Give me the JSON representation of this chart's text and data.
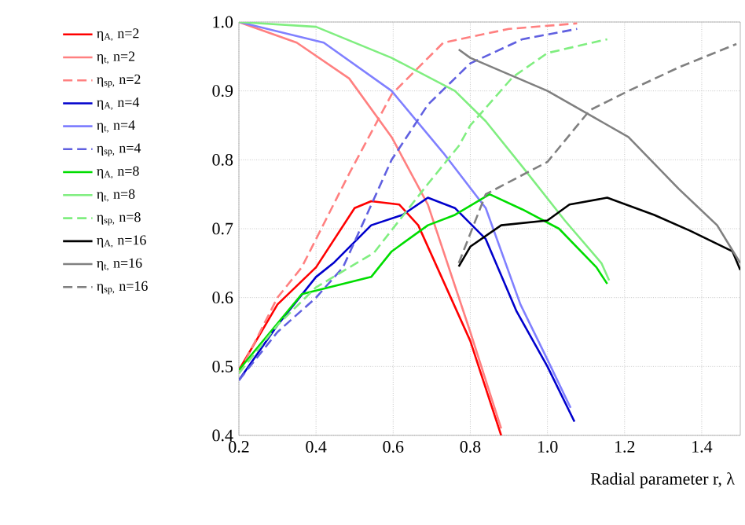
{
  "chart_data": {
    "type": "line",
    "xlabel": "Radial parameter r, λ",
    "xlim": [
      0.2,
      1.5
    ],
    "ylim": [
      0.4,
      1.0
    ],
    "xticks": [
      0.2,
      0.4,
      0.6,
      0.8,
      {
        "value": 1.0,
        "label": "1.0"
      },
      1.2,
      1.4
    ],
    "yticks": [
      0.4,
      0.5,
      0.6,
      0.7,
      0.8,
      0.9,
      {
        "value": 1.0,
        "label": "1.0"
      }
    ],
    "grid": true,
    "legend": "left",
    "series": [
      {
        "name": "η$_{A,}$  n=2",
        "color": "#ff0000",
        "line_style": "solid",
        "x": [
          0.2,
          0.3,
          0.4,
          0.5,
          0.543,
          0.616,
          0.665,
          0.8,
          0.88
        ],
        "values": [
          0.495,
          0.59,
          0.644,
          0.73,
          0.74,
          0.735,
          0.705,
          0.537,
          0.4
        ]
      },
      {
        "name": "η$_{t,}$  n=2",
        "color": "#ff8080",
        "line_style": "solid",
        "x": [
          0.2,
          0.35,
          0.486,
          0.596,
          0.69,
          0.8,
          0.88
        ],
        "values": [
          1.0,
          0.97,
          0.918,
          0.833,
          0.735,
          0.55,
          0.41
        ]
      },
      {
        "name": "η$_{sp,}$  n=2",
        "color": "#ff8080",
        "line_style": "dashed",
        "x": [
          0.2,
          0.3,
          0.363,
          0.486,
          0.596,
          0.73,
          0.9,
          1.077
        ],
        "values": [
          0.49,
          0.6,
          0.644,
          0.78,
          0.895,
          0.97,
          0.99,
          0.998
        ]
      },
      {
        "name": "η$_{A,}$  n=4",
        "color": "#0000cc",
        "line_style": "solid",
        "x": [
          0.2,
          0.3,
          0.4,
          0.445,
          0.543,
          0.624,
          0.69,
          0.76,
          0.84,
          0.92,
          1.0,
          1.07
        ],
        "values": [
          0.48,
          0.56,
          0.63,
          0.65,
          0.705,
          0.72,
          0.745,
          0.73,
          0.685,
          0.58,
          0.5,
          0.42
        ]
      },
      {
        "name": "η$_{t,}$  n=4",
        "color": "#8080ff",
        "line_style": "solid",
        "x": [
          0.2,
          0.42,
          0.596,
          0.73,
          0.84,
          0.93,
          1.0,
          1.06
        ],
        "values": [
          1.0,
          0.97,
          0.9,
          0.81,
          0.73,
          0.59,
          0.51,
          0.44
        ]
      },
      {
        "name": "η$_{sp,}$  n=4",
        "color": "#6060e0",
        "line_style": "dashed",
        "x": [
          0.2,
          0.3,
          0.4,
          0.47,
          0.596,
          0.69,
          0.8,
          0.935,
          1.077
        ],
        "values": [
          0.48,
          0.55,
          0.6,
          0.644,
          0.8,
          0.88,
          0.94,
          0.975,
          0.99
        ]
      },
      {
        "name": "η$_{A,}$  n=8",
        "color": "#00dd00",
        "line_style": "solid",
        "x": [
          0.2,
          0.363,
          0.543,
          0.596,
          0.69,
          0.76,
          0.85,
          0.935,
          1.03,
          1.127,
          1.155
        ],
        "values": [
          0.495,
          0.605,
          0.63,
          0.667,
          0.705,
          0.72,
          0.75,
          0.728,
          0.7,
          0.644,
          0.62
        ]
      },
      {
        "name": "η$_{t,}$  n=8",
        "color": "#80ee80",
        "line_style": "solid",
        "x": [
          0.2,
          0.4,
          0.596,
          0.76,
          0.84,
          0.935,
          1.045,
          1.14,
          1.16
        ],
        "values": [
          1.0,
          0.993,
          0.948,
          0.9,
          0.856,
          0.79,
          0.712,
          0.65,
          0.625
        ]
      },
      {
        "name": "η$_{sp,}$  n=8",
        "color": "#80ee80",
        "line_style": "dashed",
        "x": [
          0.2,
          0.3,
          0.4,
          0.55,
          0.69,
          0.77,
          0.8,
          0.91,
          1.0,
          1.155
        ],
        "values": [
          0.49,
          0.56,
          0.615,
          0.665,
          0.765,
          0.82,
          0.85,
          0.92,
          0.955,
          0.975
        ]
      },
      {
        "name": "η$_{A,}$  n=16",
        "color": "#000000",
        "line_style": "solid",
        "x": [
          0.77,
          0.8,
          0.88,
          1.0,
          1.057,
          1.155,
          1.277,
          1.37,
          1.48,
          1.5
        ],
        "values": [
          0.645,
          0.674,
          0.705,
          0.712,
          0.735,
          0.745,
          0.72,
          0.697,
          0.667,
          0.64
        ]
      },
      {
        "name": "η$_{t,}$  n=16",
        "color": "#808080",
        "line_style": "solid",
        "x": [
          0.77,
          0.8,
          1.0,
          1.11,
          1.21,
          1.34,
          1.44,
          1.5
        ],
        "values": [
          0.96,
          0.948,
          0.9,
          0.865,
          0.833,
          0.758,
          0.705,
          0.65
        ]
      },
      {
        "name": "η$_{sp,}$  n=16",
        "color": "#808080",
        "line_style": "dashed",
        "x": [
          0.77,
          0.84,
          1.0,
          1.11,
          1.21,
          1.34,
          1.49
        ],
        "values": [
          0.65,
          0.75,
          0.797,
          0.872,
          0.9,
          0.934,
          0.968
        ]
      }
    ]
  }
}
